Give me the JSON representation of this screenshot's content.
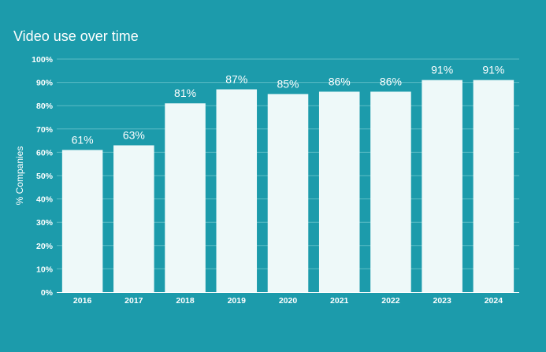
{
  "chart_data": {
    "type": "bar",
    "title": "Video use over time",
    "xlabel": "",
    "ylabel": "% Companies",
    "categories": [
      "2016",
      "2017",
      "2018",
      "2019",
      "2020",
      "2021",
      "2022",
      "2023",
      "2024"
    ],
    "values": [
      61,
      63,
      81,
      87,
      85,
      86,
      86,
      91,
      91
    ],
    "data_labels": [
      "61%",
      "63%",
      "81%",
      "87%",
      "85%",
      "86%",
      "86%",
      "91%",
      "91%"
    ],
    "ylim": [
      0,
      100
    ],
    "yticks": [
      0,
      10,
      20,
      30,
      40,
      50,
      60,
      70,
      80,
      90,
      100
    ],
    "ytick_labels": [
      "0%",
      "10%",
      "20%",
      "30%",
      "40%",
      "50%",
      "60%",
      "70%",
      "80%",
      "90%",
      "100%"
    ],
    "grid": true,
    "legend": "none",
    "colors": {
      "background": "#1c9bab",
      "bar": "#eef9f9",
      "gridline": "#5cbcc6",
      "axis": "#ffffff",
      "text": "#ffffff"
    }
  }
}
